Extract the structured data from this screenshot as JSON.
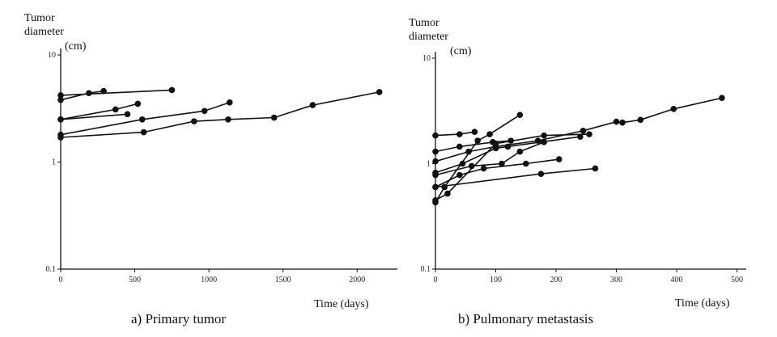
{
  "chart_data": [
    {
      "type": "line",
      "caption": "a) Primary tumor",
      "ylabel_lines": [
        "Tumor",
        "diameter"
      ],
      "yunit": "(cm)",
      "xlabel": "Time (days)",
      "y_scale": "log",
      "xlim": [
        0,
        2250
      ],
      "ylim": [
        0.1,
        10
      ],
      "x_ticks": [
        0,
        500,
        1000,
        1500,
        2000
      ],
      "x_tick_labels": [
        "0",
        "500",
        "1000",
        "1500",
        "2000"
      ],
      "y_ticks": [
        10,
        1,
        0.1
      ],
      "y_tick_labels": [
        "10",
        "1",
        "0.1"
      ],
      "grid": false,
      "series": [
        {
          "points": [
            [
              0,
              4.2
            ],
            [
              750,
              4.7
            ]
          ]
        },
        {
          "points": [
            [
              0,
              3.8
            ],
            [
              190,
              4.4
            ],
            [
              290,
              4.6
            ]
          ]
        },
        {
          "points": [
            [
              0,
              2.5
            ],
            [
              370,
              3.1
            ],
            [
              520,
              3.5
            ]
          ]
        },
        {
          "points": [
            [
              0,
              2.5
            ],
            [
              450,
              2.8
            ]
          ]
        },
        {
          "points": [
            [
              0,
              1.8
            ],
            [
              550,
              2.5
            ],
            [
              970,
              3.0
            ],
            [
              1140,
              3.6
            ]
          ]
        },
        {
          "points": [
            [
              0,
              1.7
            ],
            [
              560,
              1.9
            ],
            [
              900,
              2.4
            ],
            [
              1130,
              2.5
            ],
            [
              1440,
              2.6
            ],
            [
              1700,
              3.4
            ],
            [
              2150,
              4.5
            ]
          ]
        }
      ]
    },
    {
      "type": "line",
      "caption": "b) Pulmonary metastasis",
      "ylabel_lines": [
        "Tumor",
        "diameter"
      ],
      "yunit": "(cm)",
      "xlabel": "Time (days)",
      "y_scale": "log",
      "xlim": [
        0,
        510
      ],
      "ylim": [
        0.1,
        10
      ],
      "x_ticks": [
        0,
        100,
        200,
        300,
        400,
        500
      ],
      "x_tick_labels": [
        "0",
        "100",
        "200",
        "300",
        "400",
        "500"
      ],
      "y_ticks": [
        10,
        1,
        0.1
      ],
      "y_tick_labels": [
        "10",
        "1",
        "0.1"
      ],
      "grid": false,
      "series": [
        {
          "points": [
            [
              0,
              1.85
            ],
            [
              40,
              1.9
            ],
            [
              65,
              2.0
            ]
          ]
        },
        {
          "points": [
            [
              0,
              1.3
            ],
            [
              40,
              1.45
            ],
            [
              95,
              1.6
            ],
            [
              125,
              1.65
            ]
          ]
        },
        {
          "points": [
            [
              0,
              1.05
            ],
            [
              55,
              1.3
            ],
            [
              100,
              1.45
            ],
            [
              170,
              1.65
            ],
            [
              245,
              2.05
            ],
            [
              300,
              2.5
            ],
            [
              310,
              2.45
            ],
            [
              340,
              2.6
            ],
            [
              395,
              3.3
            ],
            [
              475,
              4.2
            ]
          ]
        },
        {
          "points": [
            [
              0,
              0.82
            ],
            [
              45,
              1.0
            ],
            [
              100,
              1.4
            ],
            [
              120,
              1.45
            ],
            [
              240,
              1.8
            ]
          ]
        },
        {
          "points": [
            [
              0,
              0.78
            ],
            [
              60,
              0.95
            ],
            [
              110,
              1.0
            ],
            [
              140,
              1.3
            ],
            [
              180,
              1.6
            ]
          ]
        },
        {
          "points": [
            [
              0,
              0.6
            ],
            [
              40,
              0.78
            ],
            [
              80,
              0.9
            ],
            [
              150,
              1.0
            ],
            [
              205,
              1.1
            ]
          ]
        },
        {
          "points": [
            [
              0,
              0.6
            ],
            [
              175,
              0.8
            ],
            [
              265,
              0.9
            ]
          ]
        },
        {
          "points": [
            [
              0,
              0.43
            ],
            [
              15,
              0.6
            ],
            [
              70,
              1.65
            ],
            [
              90,
              1.9
            ],
            [
              140,
              2.9
            ]
          ]
        },
        {
          "points": [
            [
              0,
              0.45
            ],
            [
              20,
              0.52
            ],
            [
              100,
              1.55
            ],
            [
              180,
              1.85
            ],
            [
              255,
              1.9
            ]
          ]
        }
      ]
    }
  ]
}
